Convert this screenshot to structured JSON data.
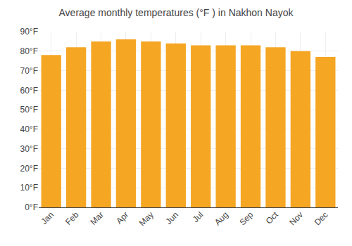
{
  "chart_data": {
    "type": "bar",
    "title": "Average monthly temperatures (°F ) in Nakhon Nayok",
    "categories": [
      "Jan",
      "Feb",
      "Mar",
      "Apr",
      "May",
      "Jun",
      "Jul",
      "Aug",
      "Sep",
      "Oct",
      "Nov",
      "Dec"
    ],
    "values": [
      78,
      82,
      85,
      86,
      85,
      84,
      83,
      83,
      83,
      82,
      80,
      77
    ],
    "color": "#F5A623",
    "ylim": [
      0,
      90
    ],
    "yticks": [
      {
        "value": 0,
        "label": "0°F"
      },
      {
        "value": 10,
        "label": "10°F"
      },
      {
        "value": 20,
        "label": "20°F"
      },
      {
        "value": 30,
        "label": "30°F"
      },
      {
        "value": 40,
        "label": "40°F"
      },
      {
        "value": 50,
        "label": "50°F"
      },
      {
        "value": 60,
        "label": "60°F"
      },
      {
        "value": 70,
        "label": "70°F"
      },
      {
        "value": 80,
        "label": "80°F"
      },
      {
        "value": 90,
        "label": "90°F"
      }
    ],
    "grid": true
  }
}
